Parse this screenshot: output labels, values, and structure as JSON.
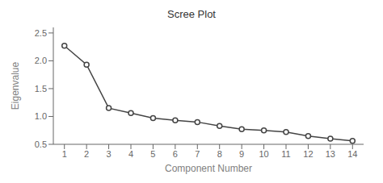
{
  "chart_data": {
    "type": "line",
    "title": "Scree Plot",
    "xlabel": "Component Number",
    "ylabel": "Eigenvalue",
    "x": [
      1,
      2,
      3,
      4,
      5,
      6,
      7,
      8,
      9,
      10,
      11,
      12,
      13,
      14
    ],
    "values": [
      2.27,
      1.93,
      1.15,
      1.06,
      0.97,
      0.93,
      0.9,
      0.83,
      0.77,
      0.75,
      0.72,
      0.65,
      0.6,
      0.56
    ],
    "xlim": [
      0.5,
      14.5
    ],
    "ylim": [
      0.5,
      2.6
    ],
    "xticks": [
      1,
      2,
      3,
      4,
      5,
      6,
      7,
      8,
      9,
      10,
      11,
      12,
      13,
      14
    ],
    "yticks": [
      0.5,
      {
        "value": 1.0,
        "label": "1.0"
      },
      1.5,
      {
        "value": 2.0,
        "label": "2.0"
      },
      2.5
    ],
    "color": "#444444",
    "marker": "circle",
    "grid": false
  }
}
